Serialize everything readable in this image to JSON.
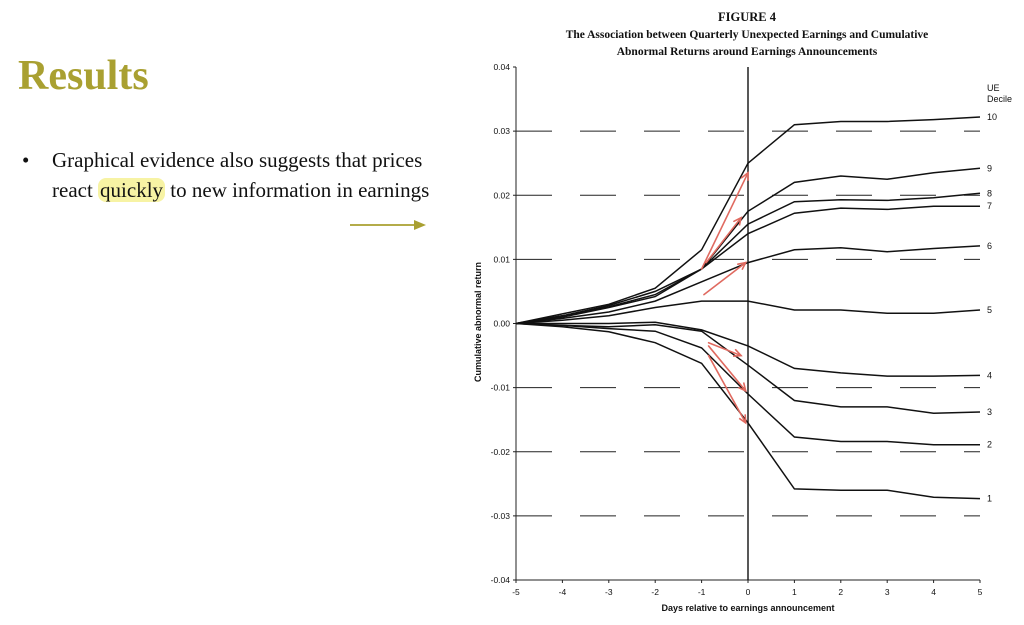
{
  "slide": {
    "title": "Results",
    "bullet_marker": "•",
    "bullet_parts": [
      "Graphical evidence also suggests that prices react ",
      "quickly",
      " to new information in earnings"
    ],
    "highlight_color": "#f7f3a4",
    "title_color": "#a9a031"
  },
  "figure": {
    "line1": "FIGURE 4",
    "line2": "The Association between Quarterly Unexpected Earnings and Cumulative",
    "line3": "Abnormal Returns around Earnings Announcements"
  },
  "chart_data": {
    "type": "line",
    "xlabel": "Days relative to earnings announcement",
    "ylabel": "Cumulative abnormal return",
    "x": [
      -5,
      -4,
      -3,
      -2,
      -1,
      0,
      1,
      2,
      3,
      4,
      5
    ],
    "xlim": [
      -5,
      5
    ],
    "ylim": [
      -0.04,
      0.04
    ],
    "yticks": [
      "-0.04",
      "-0.03",
      "-0.02",
      "-0.01",
      "0.00",
      "0.01",
      "0.02",
      "0.03",
      "0.04"
    ],
    "xticks": [
      "-5",
      "-4",
      "-3",
      "-2",
      "-1",
      "0",
      "1",
      "2",
      "3",
      "4",
      "5"
    ],
    "legend_title": [
      "UE",
      "Decile"
    ],
    "series": [
      {
        "name": "10",
        "values": [
          0,
          0.0015,
          0.003,
          0.0055,
          0.0115,
          0.025,
          0.031,
          0.0315,
          0.0315,
          0.0318,
          0.0322
        ]
      },
      {
        "name": "9",
        "values": [
          0,
          0.0012,
          0.0028,
          0.005,
          0.0085,
          0.0175,
          0.022,
          0.023,
          0.0225,
          0.0235,
          0.0242
        ]
      },
      {
        "name": "8",
        "values": [
          0,
          0.0012,
          0.0026,
          0.0045,
          0.0085,
          0.0155,
          0.019,
          0.0193,
          0.0192,
          0.0196,
          0.0203
        ]
      },
      {
        "name": "7",
        "values": [
          0,
          0.001,
          0.0025,
          0.0042,
          0.0085,
          0.014,
          0.0172,
          0.018,
          0.0178,
          0.0183,
          0.0183
        ]
      },
      {
        "name": "6",
        "values": [
          0,
          0.0008,
          0.0018,
          0.0035,
          0.0065,
          0.0095,
          0.0115,
          0.0118,
          0.0112,
          0.0117,
          0.0121
        ]
      },
      {
        "name": "5",
        "values": [
          0,
          0.0005,
          0.0012,
          0.0025,
          0.0035,
          0.0035,
          0.0021,
          0.0021,
          0.0016,
          0.0016,
          0.0021
        ]
      },
      {
        "name": "4",
        "values": [
          0,
          0,
          0,
          0.0002,
          -0.001,
          -0.0035,
          -0.007,
          -0.0077,
          -0.0082,
          -0.0082,
          -0.0081
        ]
      },
      {
        "name": "3",
        "values": [
          0,
          -0.0003,
          -0.0005,
          -0.0002,
          -0.0012,
          -0.0065,
          -0.012,
          -0.013,
          -0.013,
          -0.014,
          -0.0138
        ]
      },
      {
        "name": "2",
        "values": [
          0,
          -0.0003,
          -0.0008,
          -0.0012,
          -0.0038,
          -0.011,
          -0.0177,
          -0.0184,
          -0.0184,
          -0.0189,
          -0.0189
        ]
      },
      {
        "name": "1",
        "values": [
          0,
          -0.0005,
          -0.0013,
          -0.003,
          -0.0062,
          -0.0155,
          -0.0258,
          -0.026,
          -0.026,
          -0.0271,
          -0.0273
        ]
      }
    ],
    "line_color": "#111111",
    "annotation_color": "#e06a60",
    "grid": "dashed",
    "legend": "right"
  }
}
